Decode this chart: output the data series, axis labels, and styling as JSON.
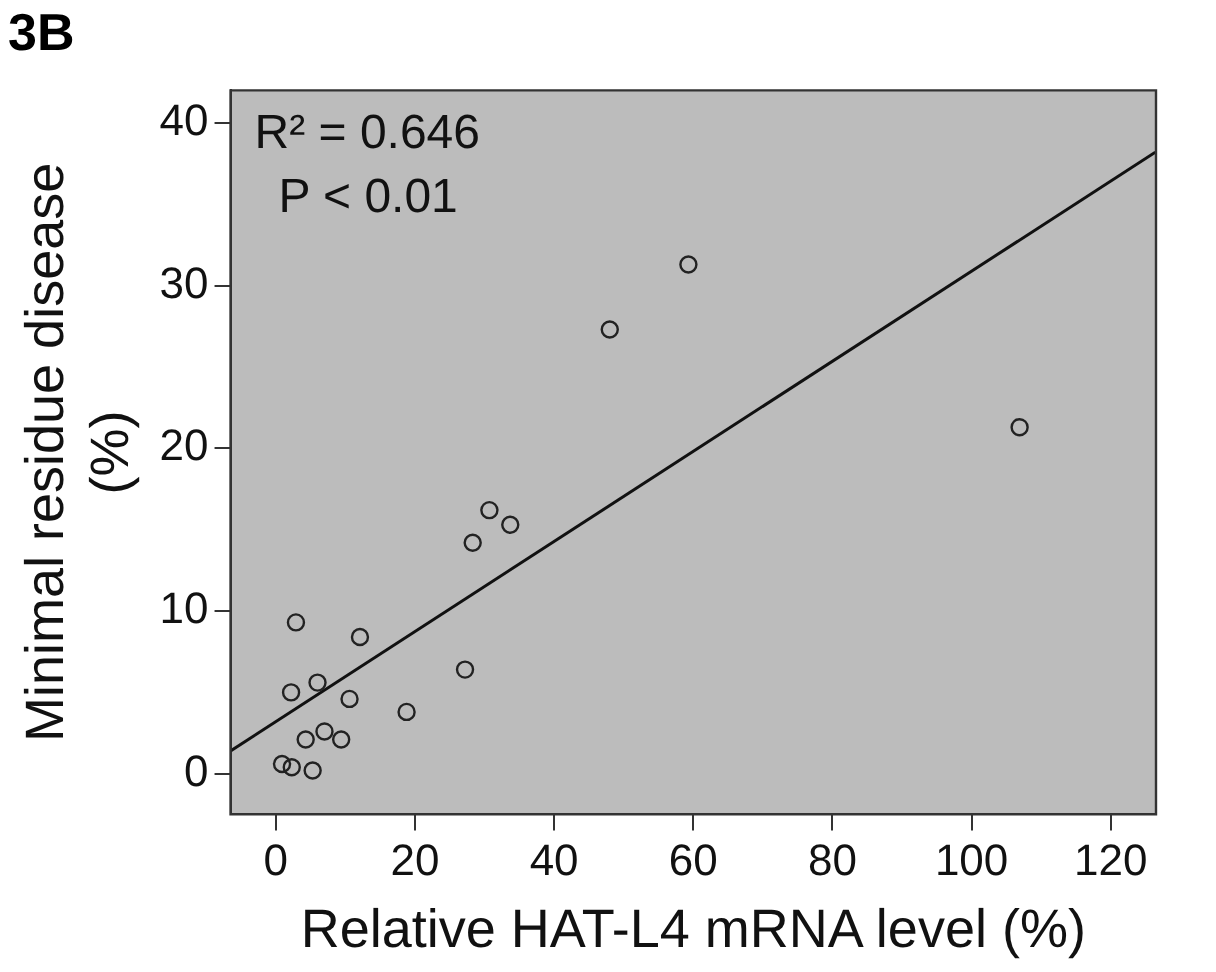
{
  "chart_data": {
    "type": "scatter",
    "title": "3B",
    "xlabel": "Relative HAT-L4 mRNA level (%)",
    "ylabel": "Minimal residue disease\n(%)",
    "annotations": [
      "R² = 0.646",
      "P < 0.01"
    ],
    "grid": false,
    "legend": false,
    "xlim": [
      -6.5,
      126.5
    ],
    "ylim": [
      -2.5,
      42
    ],
    "xticks": [
      0,
      20,
      40,
      60,
      80,
      100,
      120
    ],
    "yticks": [
      0,
      10,
      20,
      30,
      40
    ],
    "series": [
      {
        "color": "#222222",
        "marker": "circle",
        "x": [
          48.0,
          30.7,
          33.7,
          28.3,
          2.9,
          12.1,
          27.2,
          2.2,
          6.0,
          10.6,
          18.8,
          4.3,
          7.0,
          9.4,
          0.9,
          2.3,
          5.3,
          59.3,
          106.9
        ],
        "values": [
          27.3,
          16.2,
          15.3,
          14.2,
          9.3,
          8.4,
          6.4,
          5.0,
          5.6,
          4.6,
          3.8,
          2.1,
          2.6,
          2.1,
          0.6,
          0.4,
          0.2,
          31.3,
          21.3
        ]
      },
      {
        "type": "line",
        "marker": "none",
        "color": "#111111",
        "x": [
          -6.5,
          126.4
        ],
        "values": [
          1.4,
          38.2
        ]
      }
    ]
  }
}
